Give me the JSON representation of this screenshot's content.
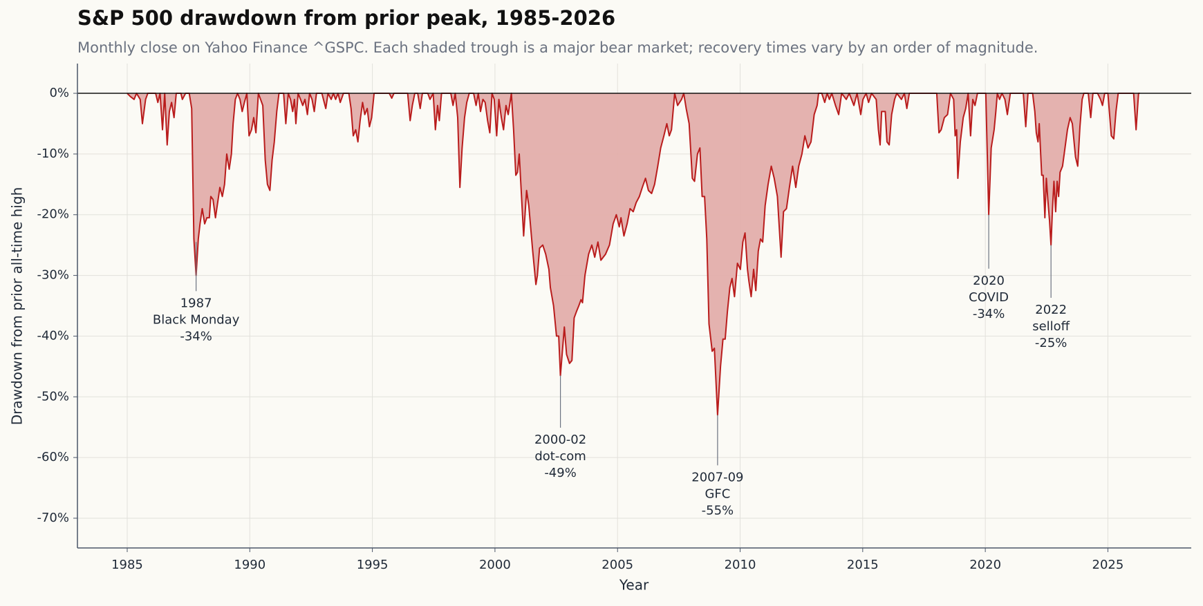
{
  "chart_data": {
    "type": "area",
    "title": "S&P 500 drawdown from prior peak, 1985-2026",
    "subtitle": "Monthly close on Yahoo Finance ^GSPC. Each shaded trough is a major bear market; recovery times vary by an order of magnitude.",
    "x_label": "Year",
    "y_label": "Drawdown from prior all-time high",
    "color": "#b91c1c",
    "fill_color": "#e3aeab",
    "grid": true,
    "reference_line": 0,
    "xlim": [
      1982.97,
      2028.4
    ],
    "ylim": [
      -74.9,
      4.9
    ],
    "xticks": [
      1985,
      1990,
      1995,
      2000,
      2005,
      2010,
      2015,
      2020,
      2025
    ],
    "yticks": [
      {
        "value": 0,
        "label": "0%"
      },
      {
        "value": -10,
        "label": "-10%"
      },
      {
        "value": -20,
        "label": "-20%"
      },
      {
        "value": -30,
        "label": "-30%"
      },
      {
        "value": -40,
        "label": "-40%"
      },
      {
        "value": -50,
        "label": "-50%"
      },
      {
        "value": -60,
        "label": "-60%"
      },
      {
        "value": -70,
        "label": "-70%"
      }
    ],
    "x": [
      1985.0,
      1985.12,
      1985.28,
      1985.38,
      1985.53,
      1985.62,
      1985.75,
      1985.84,
      1986.16,
      1986.25,
      1986.34,
      1986.44,
      1986.53,
      1986.63,
      1986.72,
      1986.81,
      1986.91,
      1987.0,
      1987.19,
      1987.25,
      1987.38,
      1987.53,
      1987.63,
      1987.72,
      1987.81,
      1987.9,
      1987.97,
      1988.06,
      1988.16,
      1988.25,
      1988.35,
      1988.41,
      1988.5,
      1988.6,
      1988.69,
      1988.78,
      1988.88,
      1988.97,
      1989.06,
      1989.16,
      1989.25,
      1989.32,
      1989.41,
      1989.5,
      1989.6,
      1989.69,
      1989.78,
      1989.88,
      1989.97,
      1990.07,
      1990.16,
      1990.25,
      1990.35,
      1990.44,
      1990.53,
      1990.63,
      1990.72,
      1990.82,
      1990.91,
      1991.0,
      1991.1,
      1991.19,
      1991.38,
      1991.47,
      1991.57,
      1991.66,
      1991.75,
      1991.82,
      1991.88,
      1991.97,
      1992.07,
      1992.16,
      1992.25,
      1992.35,
      1992.44,
      1992.54,
      1992.63,
      1992.72,
      1992.94,
      1993.1,
      1993.19,
      1993.32,
      1993.41,
      1993.5,
      1993.6,
      1993.69,
      1993.82,
      1994.04,
      1994.13,
      1994.22,
      1994.32,
      1994.41,
      1994.5,
      1994.6,
      1994.69,
      1994.79,
      1994.88,
      1994.97,
      1995.07,
      1995.69,
      1995.79,
      1995.88,
      1996.44,
      1996.54,
      1996.63,
      1996.73,
      1996.85,
      1996.95,
      1997.04,
      1997.26,
      1997.35,
      1997.48,
      1997.57,
      1997.66,
      1997.73,
      1997.82,
      1998.2,
      1998.29,
      1998.38,
      1998.48,
      1998.57,
      1998.66,
      1998.76,
      1998.85,
      1998.95,
      1999.13,
      1999.23,
      1999.32,
      1999.41,
      1999.51,
      1999.6,
      1999.7,
      1999.79,
      1999.88,
      1999.97,
      2000.07,
      2000.16,
      2000.26,
      2000.35,
      2000.45,
      2000.54,
      2000.67,
      2000.76,
      2000.85,
      2000.92,
      2000.99,
      2001.17,
      2001.29,
      2001.38,
      2001.54,
      2001.67,
      2001.73,
      2001.82,
      2001.95,
      2002.07,
      2002.2,
      2002.26,
      2002.39,
      2002.51,
      2002.6,
      2002.67,
      2002.76,
      2002.83,
      2002.92,
      2003.04,
      2003.14,
      2003.23,
      2003.32,
      2003.42,
      2003.51,
      2003.57,
      2003.67,
      2003.82,
      2003.95,
      2004.07,
      2004.2,
      2004.32,
      2004.51,
      2004.67,
      2004.82,
      2004.95,
      2005.07,
      2005.14,
      2005.26,
      2005.39,
      2005.51,
      2005.64,
      2005.76,
      2005.89,
      2006.01,
      2006.14,
      2006.26,
      2006.39,
      2006.51,
      2006.64,
      2006.76,
      2006.89,
      2007.01,
      2007.11,
      2007.2,
      2007.33,
      2007.45,
      2007.61,
      2007.7,
      2007.8,
      2007.92,
      2008.05,
      2008.14,
      2008.26,
      2008.36,
      2008.45,
      2008.55,
      2008.64,
      2008.73,
      2008.86,
      2008.95,
      2009.08,
      2009.2,
      2009.3,
      2009.39,
      2009.48,
      2009.58,
      2009.67,
      2009.77,
      2009.89,
      2010.01,
      2010.11,
      2010.2,
      2010.3,
      2010.36,
      2010.45,
      2010.55,
      2010.64,
      2010.74,
      2010.83,
      2010.92,
      2011.02,
      2011.14,
      2011.27,
      2011.39,
      2011.52,
      2011.67,
      2011.77,
      2011.89,
      2012.01,
      2012.14,
      2012.27,
      2012.39,
      2012.52,
      2012.64,
      2012.77,
      2012.89,
      2013.02,
      2013.14,
      2013.2,
      2013.33,
      2013.45,
      2013.55,
      2013.64,
      2013.74,
      2013.89,
      2014.02,
      2014.14,
      2014.33,
      2014.45,
      2014.64,
      2014.77,
      2014.92,
      2015.01,
      2015.14,
      2015.24,
      2015.36,
      2015.55,
      2015.64,
      2015.71,
      2015.77,
      2015.83,
      2015.92,
      2015.99,
      2016.08,
      2016.18,
      2016.3,
      2016.39,
      2016.58,
      2016.7,
      2016.8,
      2016.9,
      2018.02,
      2018.11,
      2018.2,
      2018.33,
      2018.46,
      2018.58,
      2018.71,
      2018.77,
      2018.83,
      2018.88,
      2018.98,
      2019.1,
      2019.2,
      2019.3,
      2019.4,
      2019.49,
      2019.58,
      2019.68,
      2020.02,
      2020.08,
      2020.14,
      2020.24,
      2020.36,
      2020.43,
      2020.49,
      2020.58,
      2020.68,
      2020.8,
      2020.9,
      2021.02,
      2021.55,
      2021.65,
      2021.74,
      2021.93,
      2022.02,
      2022.08,
      2022.15,
      2022.2,
      2022.3,
      2022.36,
      2022.43,
      2022.49,
      2022.55,
      2022.62,
      2022.68,
      2022.74,
      2022.8,
      2022.87,
      2022.93,
      2022.99,
      2023.05,
      2023.15,
      2023.25,
      2023.35,
      2023.46,
      2023.55,
      2023.68,
      2023.77,
      2023.86,
      2023.95,
      2024.02,
      2024.2,
      2024.3,
      2024.39,
      2024.58,
      2024.7,
      2024.78,
      2024.87,
      2025.0,
      2025.14,
      2025.24,
      2025.33,
      2025.42,
      2026.05,
      2026.15,
      2026.25,
      2026.3
    ],
    "values": [
      0,
      -0.5,
      -1,
      0,
      -1,
      -5,
      -1,
      0,
      0,
      -1.5,
      0,
      -6,
      0,
      -8.5,
      -3,
      -1.5,
      -4,
      0,
      0,
      -1,
      0,
      0,
      -2.5,
      -24,
      -30,
      -24,
      -21.5,
      -19,
      -21.5,
      -20.5,
      -20.5,
      -17,
      -17.5,
      -20.5,
      -18,
      -15.5,
      -17,
      -15,
      -10,
      -12.5,
      -10,
      -5,
      -1,
      0,
      -1,
      -3,
      -1.5,
      0,
      -7,
      -6,
      -4,
      -6.5,
      0,
      -1,
      -2,
      -11,
      -15,
      -16,
      -11,
      -8,
      -3,
      0,
      0,
      -5,
      0,
      -1,
      -3,
      -1,
      -5,
      0,
      -1,
      -2,
      -1,
      -3.5,
      0,
      -1,
      -3,
      0,
      0,
      -2.5,
      0,
      -1,
      0,
      -1,
      0,
      -1.5,
      0,
      0,
      -2.5,
      -7,
      -6,
      -8,
      -4.5,
      -1.5,
      -3.5,
      -2.5,
      -5.5,
      -4,
      0,
      0,
      -0.8,
      0,
      0,
      -4.5,
      -2,
      0,
      0,
      -2.5,
      0,
      0,
      -1,
      0,
      -6,
      -2,
      -4.5,
      0,
      0,
      -2,
      0,
      -4,
      -15.5,
      -9,
      -4,
      -1.5,
      0,
      0,
      -2,
      0,
      -3,
      -1,
      -1.5,
      -4.5,
      -6.5,
      0,
      -1,
      -7,
      -1,
      -4,
      -6,
      -2,
      -3.5,
      0,
      -6,
      -13.5,
      -13,
      -10,
      -23.5,
      -16,
      -18.5,
      -26,
      -31.5,
      -30,
      -25.5,
      -25,
      -26.5,
      -29,
      -32,
      -35,
      -40,
      -40,
      -46.5,
      -42,
      -38.5,
      -43,
      -44.5,
      -44,
      -37,
      -36,
      -35,
      -34,
      -34.5,
      -30,
      -26.5,
      -25,
      -27,
      -24.5,
      -27.5,
      -26.5,
      -25,
      -21.5,
      -20,
      -22,
      -20.5,
      -23.5,
      -21.5,
      -19,
      -19.5,
      -18,
      -17,
      -15.5,
      -14,
      -16,
      -16.5,
      -15,
      -12,
      -9,
      -7,
      -5,
      -7,
      -6,
      0,
      -2,
      -1,
      0,
      -2.5,
      -5,
      -14,
      -14.5,
      -10,
      -9,
      -17,
      -17,
      -24,
      -38,
      -42.5,
      -42,
      -53,
      -45,
      -40.5,
      -40.5,
      -36,
      -32,
      -30.5,
      -33.5,
      -28,
      -29,
      -24.5,
      -23,
      -29,
      -31,
      -33.5,
      -29,
      -32.5,
      -26,
      -24,
      -24.5,
      -18.5,
      -15,
      -12,
      -14,
      -17,
      -27,
      -19.5,
      -19,
      -15.5,
      -12,
      -15.5,
      -12,
      -10,
      -7,
      -9,
      -8,
      -3.5,
      -2,
      0,
      0,
      -1.5,
      0,
      -1,
      0,
      -2,
      -3.5,
      0,
      -1,
      0,
      -2,
      0,
      -3.5,
      -1,
      0,
      -1.5,
      0,
      -1,
      -6,
      -8.5,
      -3,
      -3,
      -3,
      -8,
      -8.5,
      -3.5,
      -1,
      0,
      -1,
      0,
      -2.5,
      0,
      0,
      -6.5,
      -6,
      -4,
      -3.5,
      0,
      -1,
      -7,
      -6,
      -14,
      -8,
      -4,
      -2.5,
      0,
      -7,
      -1,
      -2,
      0,
      0,
      -10,
      -20,
      -9,
      -6,
      -3,
      0,
      -1,
      0,
      -1,
      -3.5,
      0,
      0,
      -5.5,
      0,
      0,
      -3,
      -6.5,
      -8,
      -5,
      -13.5,
      -13.5,
      -20.5,
      -14,
      -17.5,
      -21,
      -25,
      -19,
      -14.5,
      -19.5,
      -14.5,
      -17,
      -13,
      -12,
      -9,
      -6,
      -4,
      -5,
      -10.5,
      -12,
      -5.5,
      -1,
      0,
      0,
      -4,
      0,
      0,
      -1,
      -2,
      0,
      0,
      -7,
      -7.5,
      -3,
      0,
      0,
      -6,
      0,
      0
    ],
    "annotations": [
      {
        "text": [
          "1987",
          "Black Monday",
          "-34%"
        ],
        "xy": [
          1987.81,
          -24.5
        ],
        "xytext": [
          1987.81,
          -33.5
        ]
      },
      {
        "text": [
          "2000-02",
          "dot-com",
          "-49%"
        ],
        "xy": [
          2002.67,
          -46.5
        ],
        "xytext": [
          2002.67,
          -56
        ]
      },
      {
        "text": [
          "2007-09",
          "GFC",
          "-55%"
        ],
        "xy": [
          2009.08,
          -53
        ],
        "xytext": [
          2009.08,
          -62.2
        ]
      },
      {
        "text": [
          "2020",
          "COVID",
          "-34%"
        ],
        "xy": [
          2020.14,
          -20
        ],
        "xytext": [
          2020.14,
          -29.8
        ]
      },
      {
        "text": [
          "2022",
          "selloff",
          "-25%"
        ],
        "xy": [
          2022.68,
          -25
        ],
        "xytext": [
          2022.68,
          -34.6
        ]
      }
    ]
  }
}
